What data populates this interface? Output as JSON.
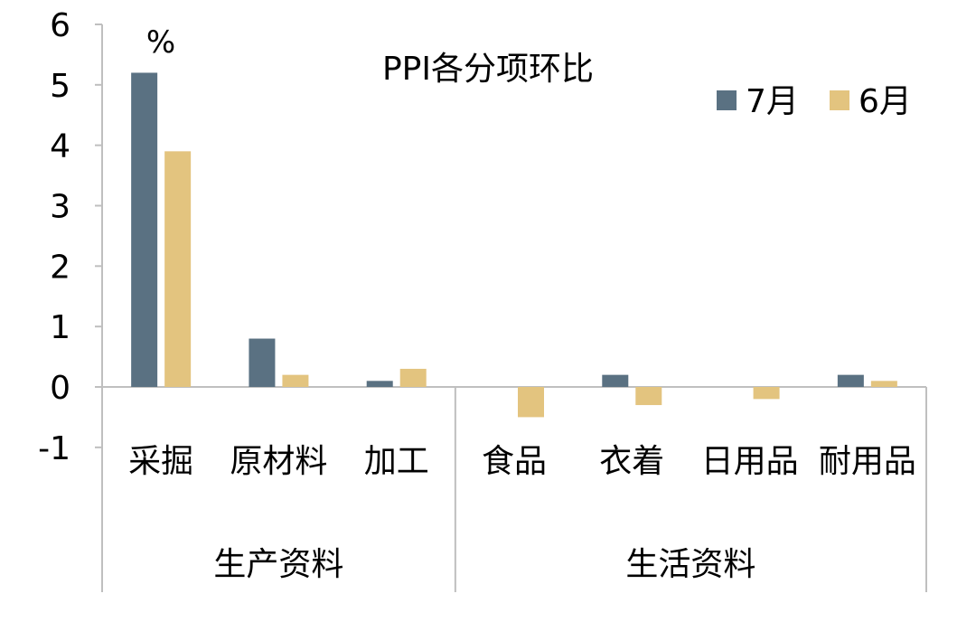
{
  "chart_data": {
    "type": "bar",
    "title": "PPI各分项环比",
    "unit_label": "%",
    "ylim": [
      -1,
      6
    ],
    "yticks": [
      "6",
      "5",
      "4",
      "3",
      "2",
      "1",
      "0",
      "-1"
    ],
    "legend_position": "top-right",
    "categories": [
      "采掘",
      "原材料",
      "加工",
      "食品",
      "衣着",
      "日用品",
      "耐用品"
    ],
    "groups": [
      {
        "label": "生产资料",
        "categories": [
          "采掘",
          "原材料",
          "加工"
        ]
      },
      {
        "label": "生活资料",
        "categories": [
          "食品",
          "衣着",
          "日用品",
          "耐用品"
        ]
      }
    ],
    "series": [
      {
        "name": "7月",
        "color": "#5a7182",
        "values": [
          5.2,
          0.8,
          0.1,
          0.0,
          0.2,
          0.0,
          0.2
        ]
      },
      {
        "name": "6月",
        "color": "#e3c47f",
        "values": [
          3.9,
          0.2,
          0.3,
          -0.5,
          -0.3,
          -0.2,
          0.1
        ]
      }
    ]
  }
}
